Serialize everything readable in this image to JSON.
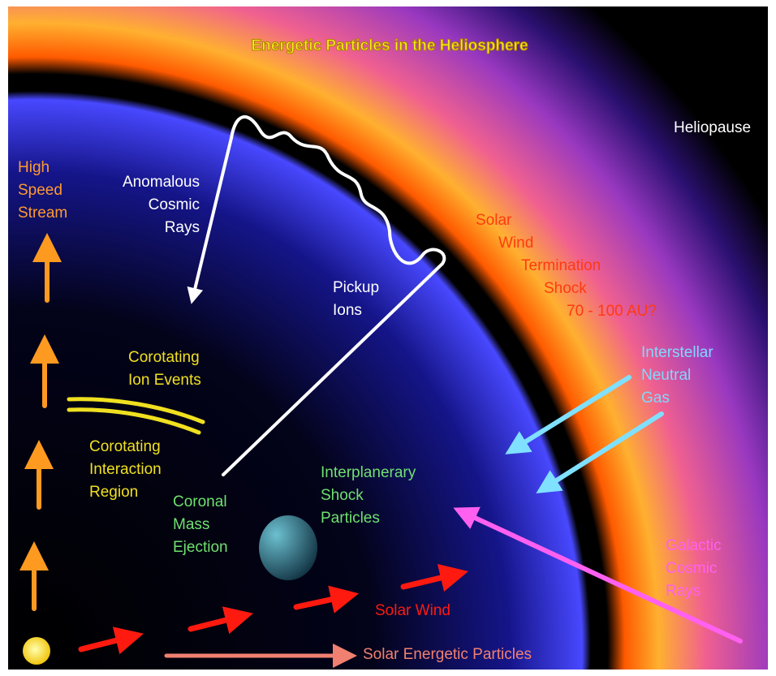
{
  "title": "Energetic Particles in the Heliosphere",
  "labels": {
    "heliopause": [
      "Heliopause"
    ],
    "high_speed_stream": [
      "High",
      "Speed",
      "Stream"
    ],
    "anomalous_cosmic_rays": [
      "Anomalous",
      "Cosmic",
      "Rays"
    ],
    "termination_shock": [
      "Solar",
      "Wind",
      "Termination",
      "Shock",
      "70 - 100 AU?"
    ],
    "pickup_ions": [
      "Pickup",
      "Ions"
    ],
    "corotating_ion_events": [
      "Corotating",
      "Ion Events"
    ],
    "interstellar_neutral_gas": [
      "Interstellar",
      "Neutral",
      "Gas"
    ],
    "corotating_interaction_region": [
      "Corotating",
      "Interaction",
      "Region"
    ],
    "interplanetary_shock_particles": [
      "Interplanerary",
      "Shock",
      "Particles"
    ],
    "coronal_mass_ejection": [
      "Coronal",
      "Mass",
      "Ejection"
    ],
    "galactic_cosmic_rays": [
      "Galactic",
      "Cosmic",
      "Rays"
    ],
    "solar_wind": [
      "Solar Wind"
    ],
    "solar_energetic_particles": [
      "Solar Energetic Particles"
    ]
  }
}
